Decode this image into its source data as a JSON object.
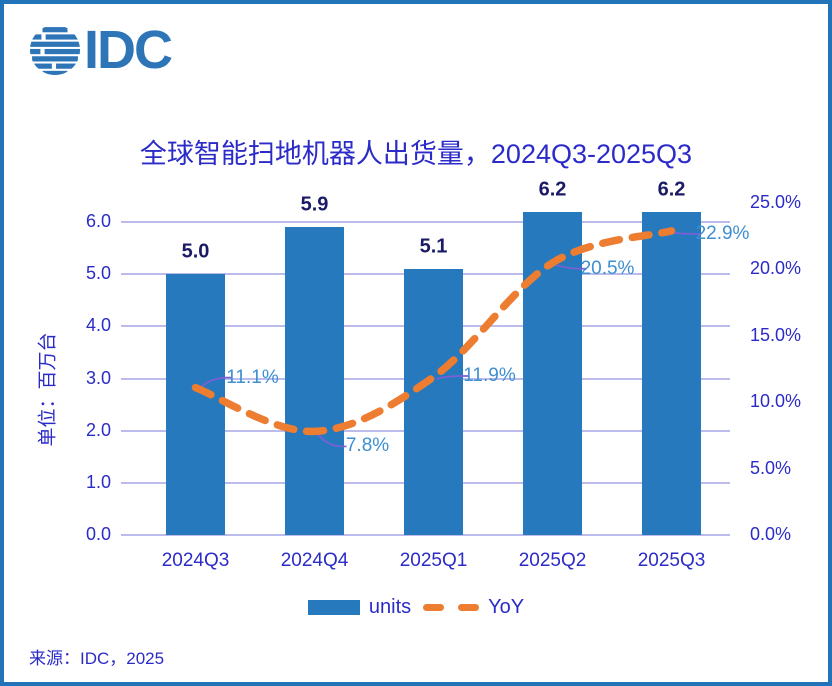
{
  "brand": {
    "logo_text": "IDC"
  },
  "source_note": "来源：IDC，2025",
  "palette": {
    "frame": "#2273B8",
    "logo_blue": "#2E75B8",
    "bar_blue": "#2679BC",
    "line_orange": "#ED7D31",
    "grid": "#BCBCEC",
    "royal_text": "#2B2BC8",
    "bar_label_navy": "#1A1A66",
    "yoy_label_blue": "#3E8FD0",
    "leader_purple": "#7B5FD6"
  },
  "chart_data": {
    "type": "bar",
    "subtype": "combo-bar-line-dual-axis",
    "title": "全球智能扫地机器人出货量，2024Q3-2025Q3",
    "categories": [
      "2024Q3",
      "2024Q4",
      "2025Q1",
      "2025Q2",
      "2025Q3"
    ],
    "series": [
      {
        "name": "units",
        "type": "bar",
        "axis": "left",
        "values": [
          5.0,
          5.9,
          5.1,
          6.2,
          6.2
        ],
        "data_labels": [
          "5.0",
          "5.9",
          "5.1",
          "6.2",
          "6.2"
        ],
        "color": "#2679BC"
      },
      {
        "name": "YoY",
        "type": "line",
        "axis": "right",
        "dashed": true,
        "smoothed": true,
        "values": [
          11.1,
          7.8,
          11.9,
          20.5,
          22.9
        ],
        "data_labels": [
          "11.1%",
          "7.8%",
          "11.9%",
          "20.5%",
          "22.9%"
        ],
        "color": "#ED7D31",
        "label_offsets": [
          [
            57,
            -10
          ],
          [
            53,
            15
          ],
          [
            56,
            -1
          ],
          [
            55,
            6
          ],
          [
            51,
            3
          ]
        ]
      }
    ],
    "left_axis": {
      "title": "单位：百万台",
      "tick_labels": [
        "0.0",
        "1.0",
        "2.0",
        "3.0",
        "4.0",
        "5.0",
        "6.0"
      ],
      "tick_values": [
        0,
        1,
        2,
        3,
        4,
        5,
        6
      ],
      "range_shown": [
        0,
        6
      ]
    },
    "right_axis": {
      "tick_labels": [
        "0.0%",
        "5.0%",
        "10.0%",
        "15.0%",
        "20.0%",
        "25.0%"
      ],
      "tick_values": [
        0,
        5,
        10,
        15,
        20,
        25
      ],
      "range": [
        0,
        25
      ]
    },
    "grid": true,
    "legend": {
      "position": "bottom",
      "items": [
        {
          "swatch": "bar",
          "label": "units"
        },
        {
          "swatch": "dash",
          "label": "YoY"
        }
      ]
    }
  }
}
